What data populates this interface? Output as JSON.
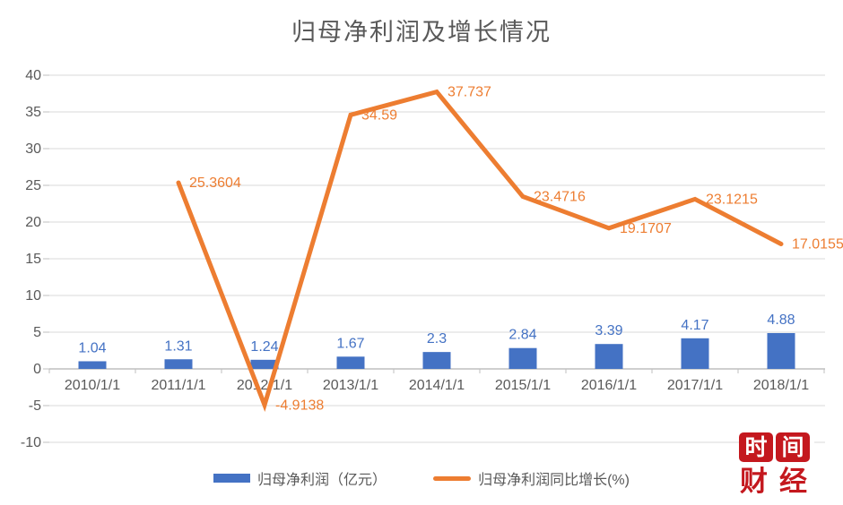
{
  "title": "归母净利润及增长情况",
  "watermark": {
    "block1": "时",
    "block2": "间",
    "line2": "财经",
    "color": "#C4181E"
  },
  "colors": {
    "bar": "#4472C4",
    "line": "#ED7D31",
    "bar_label": "#4472C4",
    "line_label": "#ED7D31",
    "axis_text": "#595959",
    "title_text": "#595959",
    "gridline": "#D9D9D9",
    "axis_line": "#BFBFBF",
    "background": "#FFFFFF"
  },
  "chart_data": {
    "type": "bar+line",
    "title": "归母净利润及增长情况",
    "categories": [
      "2010/1/1",
      "2011/1/1",
      "2012/1/1",
      "2013/1/1",
      "2014/1/1",
      "2015/1/1",
      "2016/1/1",
      "2017/1/1",
      "2018/1/1"
    ],
    "series": [
      {
        "name": "归母净利润（亿元）",
        "type": "bar",
        "color": "#4472C4",
        "values": [
          1.04,
          1.31,
          1.24,
          1.67,
          2.3,
          2.84,
          3.39,
          4.17,
          4.88
        ]
      },
      {
        "name": "归母净利润同比增长(%)",
        "type": "line",
        "color": "#ED7D31",
        "values": [
          null,
          25.3604,
          -4.9138,
          34.59,
          37.737,
          23.4716,
          19.1707,
          23.1215,
          17.0155
        ]
      }
    ],
    "ylim": [
      -10,
      40
    ],
    "yticks": [
      40,
      35,
      30,
      25,
      20,
      15,
      10,
      5,
      0,
      -5,
      -10
    ],
    "grid": true,
    "data_labels": true,
    "legend_position": "bottom"
  }
}
